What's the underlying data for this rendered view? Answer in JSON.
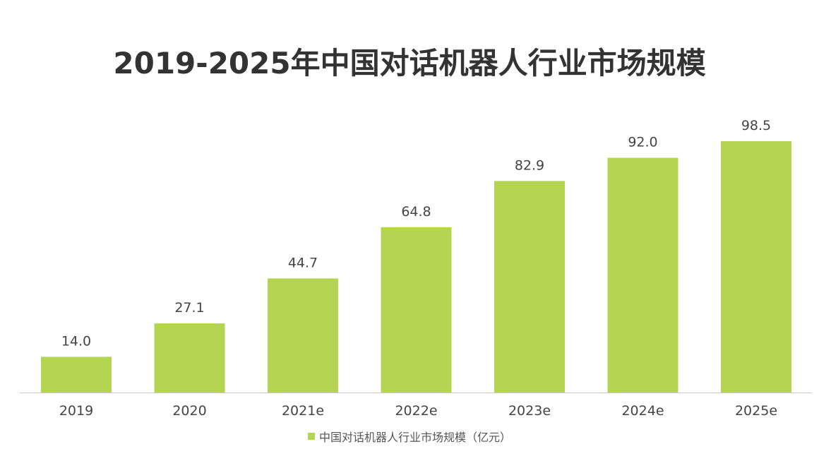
{
  "chart_data": {
    "type": "bar",
    "title": "2019-2025年中国对话机器人行业市场规模",
    "categories": [
      "2019",
      "2020",
      "2021e",
      "2022e",
      "2023e",
      "2024e",
      "2025e"
    ],
    "series": [
      {
        "name": "中国对话机器人行业市场规模（亿元）",
        "values": [
          14.0,
          27.1,
          44.7,
          64.8,
          82.9,
          92.0,
          98.5
        ],
        "color": "#b5d452"
      }
    ],
    "value_labels": [
      "14.0",
      "27.1",
      "44.7",
      "64.8",
      "82.9",
      "92.0",
      "98.5"
    ],
    "ylim": [
      0,
      98.5
    ],
    "grid": false,
    "legend": "bottom"
  }
}
